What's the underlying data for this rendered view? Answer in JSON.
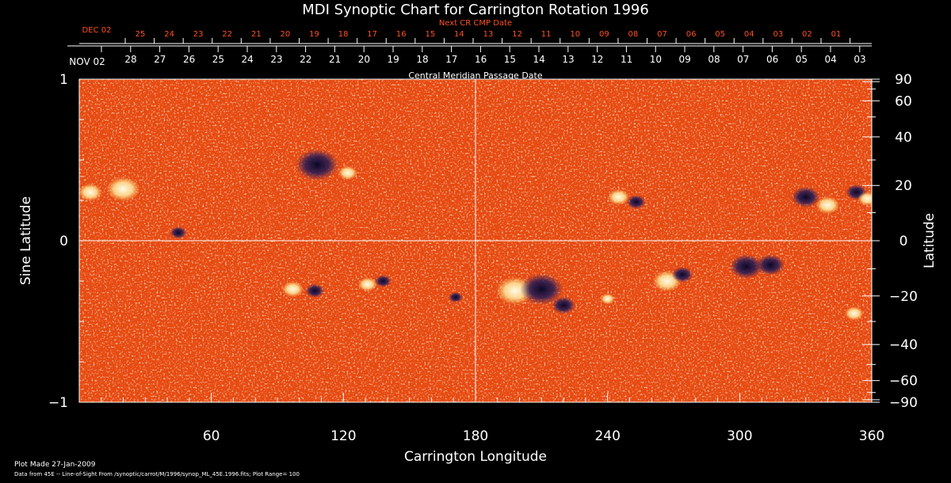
{
  "chart_data": {
    "type": "heatmap",
    "title": "MDI Synoptic Chart for Carrington Rotation 1996",
    "xlabel": "Carrington Longitude",
    "ylabel_left": "Sine Latitude",
    "ylabel_right": "Latitude",
    "x_range": [
      0,
      360
    ],
    "y_range": [
      -1,
      1
    ],
    "x_ticks": [
      {
        "value": 60,
        "label": "60"
      },
      {
        "value": 120,
        "label": "120"
      },
      {
        "value": 180,
        "label": "180"
      },
      {
        "value": 240,
        "label": "240"
      },
      {
        "value": 300,
        "label": "300"
      },
      {
        "value": 360,
        "label": "360"
      }
    ],
    "y_left_ticks": [
      {
        "value": 1,
        "label": "1"
      },
      {
        "value": 0,
        "label": "0"
      },
      {
        "value": -1,
        "label": "−1"
      }
    ],
    "y_right_ticks": [
      {
        "deg": 90,
        "label": "90"
      },
      {
        "deg": 60,
        "label": "60"
      },
      {
        "deg": 40,
        "label": "40"
      },
      {
        "deg": 20,
        "label": "20"
      },
      {
        "deg": 0,
        "label": "0"
      },
      {
        "deg": -20,
        "label": "−20"
      },
      {
        "deg": -40,
        "label": "−40"
      },
      {
        "deg": -60,
        "label": "−60"
      },
      {
        "deg": -90,
        "label": "−90"
      }
    ],
    "top_axis": {
      "label": "Central Meridian Passage Date",
      "start_label": "NOV 02",
      "day_labels": [
        "28",
        "27",
        "26",
        "25",
        "24",
        "23",
        "22",
        "21",
        "20",
        "19",
        "18",
        "17",
        "16",
        "15",
        "14",
        "13",
        "12",
        "11",
        "10",
        "09",
        "08",
        "07",
        "06",
        "05",
        "04",
        "03"
      ]
    },
    "next_axis": {
      "label": "Next CR CMP Date",
      "start_label": "DEC 02",
      "day_labels": [
        "25",
        "24",
        "23",
        "22",
        "21",
        "20",
        "19",
        "18",
        "17",
        "16",
        "15",
        "14",
        "13",
        "12",
        "11",
        "10",
        "09",
        "08",
        "07",
        "06",
        "05",
        "04",
        "03",
        "02",
        "01"
      ]
    },
    "regions": [
      {
        "lon": 5,
        "sinlat": 0.3,
        "r": 10,
        "polarity": "positive"
      },
      {
        "lon": 20,
        "sinlat": 0.32,
        "r": 14,
        "polarity": "positive"
      },
      {
        "lon": 45,
        "sinlat": 0.05,
        "r": 7,
        "polarity": "negative"
      },
      {
        "lon": 108,
        "sinlat": 0.47,
        "r": 18,
        "polarity": "negative"
      },
      {
        "lon": 122,
        "sinlat": 0.42,
        "r": 8,
        "polarity": "positive"
      },
      {
        "lon": 97,
        "sinlat": -0.3,
        "r": 9,
        "polarity": "positive"
      },
      {
        "lon": 107,
        "sinlat": -0.31,
        "r": 8,
        "polarity": "negative"
      },
      {
        "lon": 131,
        "sinlat": -0.27,
        "r": 8,
        "polarity": "positive"
      },
      {
        "lon": 138,
        "sinlat": -0.25,
        "r": 7,
        "polarity": "negative"
      },
      {
        "lon": 171,
        "sinlat": -0.35,
        "r": 6,
        "polarity": "negative"
      },
      {
        "lon": 198,
        "sinlat": -0.31,
        "r": 16,
        "polarity": "positive"
      },
      {
        "lon": 210,
        "sinlat": -0.3,
        "r": 18,
        "polarity": "negative"
      },
      {
        "lon": 220,
        "sinlat": -0.4,
        "r": 10,
        "polarity": "negative"
      },
      {
        "lon": 245,
        "sinlat": 0.27,
        "r": 9,
        "polarity": "positive"
      },
      {
        "lon": 253,
        "sinlat": 0.24,
        "r": 8,
        "polarity": "negative"
      },
      {
        "lon": 267,
        "sinlat": -0.25,
        "r": 12,
        "polarity": "positive"
      },
      {
        "lon": 274,
        "sinlat": -0.21,
        "r": 9,
        "polarity": "negative"
      },
      {
        "lon": 303,
        "sinlat": -0.16,
        "r": 14,
        "polarity": "negative"
      },
      {
        "lon": 314,
        "sinlat": -0.15,
        "r": 12,
        "polarity": "negative"
      },
      {
        "lon": 330,
        "sinlat": 0.27,
        "r": 12,
        "polarity": "negative"
      },
      {
        "lon": 340,
        "sinlat": 0.22,
        "r": 10,
        "polarity": "positive"
      },
      {
        "lon": 353,
        "sinlat": 0.3,
        "r": 9,
        "polarity": "negative"
      },
      {
        "lon": 358,
        "sinlat": 0.26,
        "r": 8,
        "polarity": "positive"
      },
      {
        "lon": 352,
        "sinlat": -0.45,
        "r": 8,
        "polarity": "positive"
      },
      {
        "lon": 240,
        "sinlat": -0.36,
        "r": 6,
        "polarity": "positive"
      }
    ]
  },
  "footer": {
    "plot_made": "Plot Made 27-Jan-2009",
    "data_source": "Data from 45E -- Line-of-Sight From /synoptic/carrot/M/1996/synop_ML_45E.1996.fits; Plot Range= 100"
  },
  "colors": {
    "background": "#000000",
    "field_base": "#e84a10",
    "positive": "#fff8d8",
    "negative": "#14103c",
    "axis": "#ffffff",
    "next_axis": "#ff5020"
  }
}
